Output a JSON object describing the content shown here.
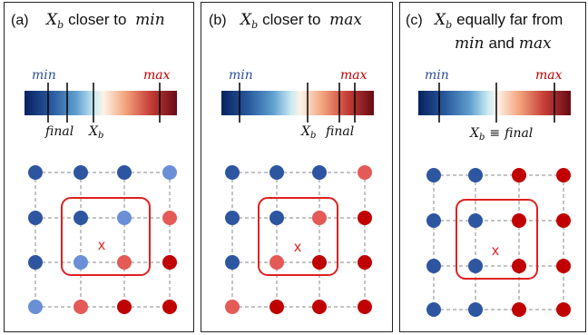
{
  "colors": {
    "blue_dark": "#2e55a0",
    "blue_light": "#6b8fd6",
    "red_light": "#e35a57",
    "red_dark": "#c00000",
    "min_label": "#2e4f9a",
    "max_label": "#c00000",
    "box": "#e02020",
    "grid_line": "#8a8a8a"
  },
  "labels": {
    "min": "min",
    "max": "max",
    "final": "final",
    "xb_main": "X",
    "xb_sub": "b",
    "equiv": "≡",
    "x_mark": "x"
  },
  "panels": [
    {
      "tag": "(a)",
      "title_line1_pre": "",
      "title_line1_post": "closer to",
      "title_line1_math": "min",
      "title_line2_math1": "",
      "title_line2_mid": "",
      "title_line2_math2": "",
      "below_mode": "separate",
      "grid": [
        [
          "dark_blue",
          "dark_blue",
          "dark_blue",
          "light_blue"
        ],
        [
          "dark_blue",
          "dark_blue",
          "light_blue",
          "light_red"
        ],
        [
          "dark_blue",
          "light_blue",
          "light_red",
          "dark_red"
        ],
        [
          "light_blue",
          "light_red",
          "dark_red",
          "dark_red"
        ]
      ]
    },
    {
      "tag": "(b)",
      "title_line1_pre": "",
      "title_line1_post": "closer to",
      "title_line1_math": "max",
      "title_line2_math1": "",
      "title_line2_mid": "",
      "title_line2_math2": "",
      "below_mode": "separate",
      "grid": [
        [
          "dark_blue",
          "dark_blue",
          "dark_blue",
          "light_red"
        ],
        [
          "dark_blue",
          "dark_blue",
          "light_red",
          "dark_red"
        ],
        [
          "dark_blue",
          "light_red",
          "dark_red",
          "dark_red"
        ],
        [
          "light_red",
          "dark_red",
          "dark_red",
          "dark_red"
        ]
      ]
    },
    {
      "tag": "(c)",
      "title_line1_pre": "",
      "title_line1_post": "equally far from",
      "title_line1_math": "",
      "title_line2_math1": "min",
      "title_line2_mid": "and",
      "title_line2_math2": "max",
      "below_mode": "equiv",
      "grid": [
        [
          "dark_blue",
          "dark_blue",
          "dark_red",
          "dark_red"
        ],
        [
          "dark_blue",
          "dark_blue",
          "dark_red",
          "dark_red"
        ],
        [
          "dark_blue",
          "dark_blue",
          "dark_red",
          "dark_red"
        ],
        [
          "dark_blue",
          "dark_blue",
          "dark_red",
          "dark_red"
        ]
      ]
    }
  ]
}
